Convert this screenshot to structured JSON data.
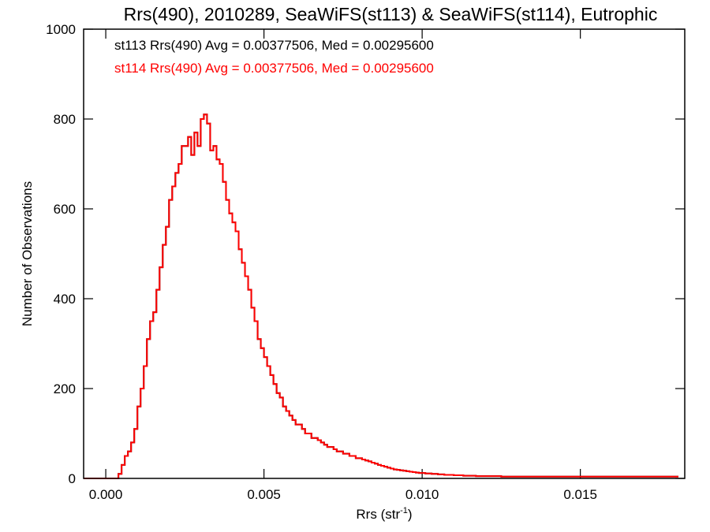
{
  "chart_data": {
    "type": "histogram",
    "title": "Rrs(490), 2010289, SeaWiFS(st113) & SeaWiFS(st114), Eutrophic",
    "xlabel": "Rrs (str",
    "xlabel_sup": "-1",
    "xlabel_suffix": ")",
    "ylabel": "Number of Observations",
    "xlim": [
      -0.0007,
      0.0183
    ],
    "ylim": [
      0,
      1000
    ],
    "xticks": [
      0.0,
      0.005,
      0.01,
      0.015
    ],
    "xtick_labels": [
      "0.000",
      "0.005",
      "0.010",
      "0.015"
    ],
    "yticks": [
      0,
      200,
      400,
      600,
      800,
      1000
    ],
    "ytick_labels": [
      "0",
      "200",
      "400",
      "600",
      "800",
      "1000"
    ],
    "bin_start": 0.0003,
    "bin_width": 0.0001,
    "annotations": [
      {
        "text": "st113 Rrs(490) Avg = 0.00377506, Med = 0.00295600",
        "color": "#000000"
      },
      {
        "text": "st114 Rrs(490) Avg = 0.00377506, Med = 0.00295600",
        "color": "#ff0000"
      }
    ],
    "series": [
      {
        "name": "st113",
        "color": "#000000",
        "values": [
          0,
          10,
          30,
          50,
          60,
          80,
          110,
          160,
          200,
          250,
          310,
          350,
          370,
          420,
          470,
          520,
          560,
          620,
          650,
          680,
          700,
          740,
          740,
          760,
          720,
          770,
          740,
          800,
          810,
          790,
          730,
          740,
          710,
          700,
          660,
          620,
          590,
          570,
          550,
          510,
          480,
          450,
          420,
          380,
          350,
          310,
          290,
          270,
          250,
          230,
          210,
          190,
          180,
          160,
          150,
          140,
          130,
          120,
          120,
          110,
          100,
          100,
          90,
          90,
          85,
          80,
          75,
          70,
          70,
          65,
          60,
          60,
          55,
          55,
          50,
          50,
          45,
          45,
          42,
          40,
          38,
          35,
          33,
          30,
          28,
          26,
          24,
          22,
          20,
          19,
          18,
          17,
          16,
          15,
          14,
          13,
          12,
          12,
          11,
          11,
          10,
          10,
          9,
          9,
          8,
          8,
          8,
          7,
          7,
          7,
          6,
          6,
          6,
          6,
          5,
          5,
          5,
          5,
          5,
          5,
          5,
          5,
          4,
          4,
          4,
          4,
          4,
          4,
          4,
          4,
          4,
          4,
          4,
          4,
          4,
          4,
          4,
          4,
          4,
          4,
          4,
          4,
          4,
          4,
          4,
          4,
          4,
          4,
          4,
          4,
          4,
          4,
          4,
          4,
          4,
          4,
          4,
          4,
          4,
          4,
          4,
          4,
          4,
          4,
          4,
          4,
          4,
          4,
          4,
          4,
          4,
          4,
          4,
          4,
          4,
          4,
          4,
          4
        ]
      },
      {
        "name": "st114",
        "color": "#ff0000",
        "values": [
          0,
          10,
          30,
          50,
          60,
          80,
          110,
          160,
          200,
          250,
          310,
          350,
          370,
          420,
          470,
          520,
          560,
          620,
          650,
          680,
          700,
          740,
          740,
          760,
          720,
          770,
          740,
          800,
          810,
          790,
          730,
          740,
          710,
          700,
          660,
          620,
          590,
          570,
          550,
          510,
          480,
          450,
          420,
          380,
          350,
          310,
          290,
          270,
          250,
          230,
          210,
          190,
          180,
          160,
          150,
          140,
          130,
          120,
          120,
          110,
          100,
          100,
          90,
          90,
          85,
          80,
          75,
          70,
          70,
          65,
          60,
          60,
          55,
          55,
          50,
          50,
          45,
          45,
          42,
          40,
          38,
          35,
          33,
          30,
          28,
          26,
          24,
          22,
          20,
          19,
          18,
          17,
          16,
          15,
          14,
          13,
          12,
          12,
          11,
          11,
          10,
          10,
          9,
          9,
          8,
          8,
          8,
          7,
          7,
          7,
          6,
          6,
          6,
          6,
          5,
          5,
          5,
          5,
          5,
          5,
          5,
          5,
          4,
          4,
          4,
          4,
          4,
          4,
          4,
          4,
          4,
          4,
          4,
          4,
          4,
          4,
          4,
          4,
          4,
          4,
          4,
          4,
          4,
          4,
          4,
          4,
          4,
          4,
          4,
          4,
          4,
          4,
          4,
          4,
          4,
          4,
          4,
          4,
          4,
          4,
          4,
          4,
          4,
          4,
          4,
          4,
          4,
          4,
          4,
          4,
          4,
          4,
          4,
          4,
          4,
          4,
          4,
          4
        ]
      }
    ]
  }
}
